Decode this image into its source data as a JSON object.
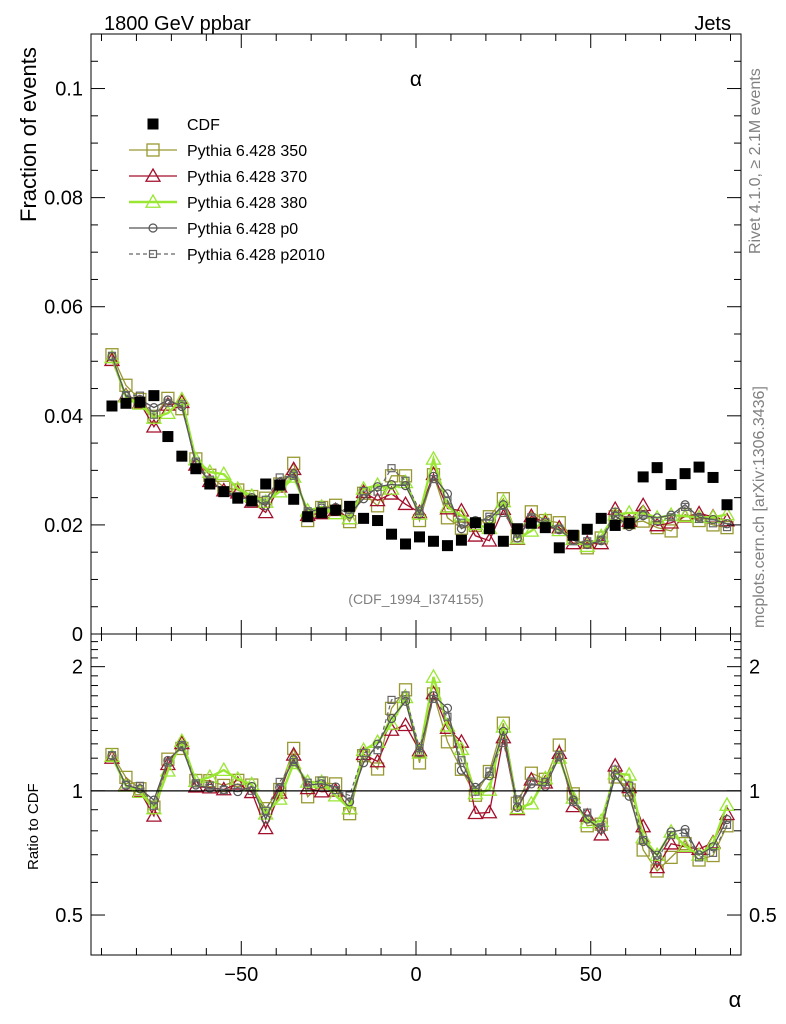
{
  "header": {
    "left_title": "1800 GeV ppbar",
    "right_title": "Jets"
  },
  "side_labels": {
    "rivet": "Rivet 4.1.0, ≥ 2.1M events",
    "mcplots": "mcplots.cern.ch [arXiv:1306.3436]"
  },
  "chart_data": [
    {
      "type": "scatter",
      "title": "α",
      "annotation": "(CDF_1994_I374155)",
      "ylabel": "Fraction of events",
      "xlabel": "α",
      "xlim": [
        -93,
        93
      ],
      "ylim": [
        0,
        0.11
      ],
      "yticks": [
        0,
        0.02,
        0.04,
        0.06,
        0.08,
        0.1
      ],
      "ytick_labels": [
        "0",
        "0.02",
        "0.04",
        "0.06",
        "0.08",
        "0.1"
      ],
      "x": [
        -87,
        -83,
        -79,
        -75,
        -71,
        -67,
        -63,
        -59,
        -55,
        -51,
        -47,
        -43,
        -39,
        -35,
        -31,
        -27,
        -23,
        -19,
        -15,
        -11,
        -7,
        -3,
        1,
        5,
        9,
        13,
        17,
        21,
        25,
        29,
        33,
        37,
        41,
        45,
        49,
        53,
        57,
        61,
        65,
        69,
        73,
        77,
        81,
        85,
        89
      ],
      "legend": [
        "CDF",
        "Pythia 6.428 350",
        "Pythia 6.428 370",
        "Pythia 6.428 380",
        "Pythia 6.428 p0",
        "Pythia 6.428 p2010"
      ],
      "series": [
        {
          "name": "CDF",
          "color": "#000000",
          "values": [
            0.0418,
            0.0423,
            0.0425,
            0.0437,
            0.0362,
            0.0326,
            0.0303,
            0.0275,
            0.0261,
            0.0249,
            0.0244,
            0.0275,
            0.0273,
            0.0247,
            0.0215,
            0.0222,
            0.0227,
            0.0234,
            0.0212,
            0.0208,
            0.0183,
            0.0165,
            0.0178,
            0.017,
            0.0162,
            0.0172,
            0.0204,
            0.0193,
            0.017,
            0.0193,
            0.0203,
            0.0195,
            0.0158,
            0.0181,
            0.0192,
            0.0212,
            0.0199,
            0.0203,
            0.0288,
            0.0305,
            0.0274,
            0.0294,
            0.0306,
            0.0287,
            0.0237
          ]
        },
        {
          "name": "Pythia 6.428 350",
          "color": "#999933",
          "values": [
            0.0512,
            0.0456,
            0.043,
            0.0399,
            0.0432,
            0.0413,
            0.0321,
            0.0291,
            0.0269,
            0.0264,
            0.0252,
            0.0249,
            0.0275,
            0.0313,
            0.0208,
            0.0232,
            0.0236,
            0.0206,
            0.0258,
            0.0235,
            0.029,
            0.029,
            0.0208,
            0.0292,
            0.0213,
            0.0194,
            0.0199,
            0.0215,
            0.0248,
            0.018,
            0.0224,
            0.0208,
            0.0204,
            0.0178,
            0.0158,
            0.0176,
            0.0215,
            0.0204,
            0.0207,
            0.0195,
            0.0189,
            0.0219,
            0.0208,
            0.02,
            0.0195
          ]
        },
        {
          "name": "Pythia 6.428 370",
          "color": "#a30f2b",
          "values": [
            0.0502,
            0.0437,
            0.0424,
            0.038,
            0.042,
            0.0425,
            0.031,
            0.028,
            0.0263,
            0.0259,
            0.0242,
            0.0223,
            0.027,
            0.0302,
            0.0218,
            0.0221,
            0.0227,
            0.0212,
            0.026,
            0.0245,
            0.0257,
            0.0238,
            0.0223,
            0.0293,
            0.023,
            0.0226,
            0.018,
            0.0171,
            0.0229,
            0.0174,
            0.0216,
            0.0204,
            0.0195,
            0.0166,
            0.0167,
            0.0166,
            0.0229,
            0.0207,
            0.0236,
            0.0199,
            0.0204,
            0.0215,
            0.0221,
            0.0215,
            0.0208
          ]
        },
        {
          "name": "Pythia 6.428 380",
          "color": "#99e633",
          "values": [
            0.0507,
            0.0435,
            0.0422,
            0.0396,
            0.0405,
            0.043,
            0.032,
            0.0297,
            0.0293,
            0.0266,
            0.0253,
            0.0242,
            0.0261,
            0.0288,
            0.0226,
            0.0233,
            0.0221,
            0.0212,
            0.0266,
            0.0273,
            0.0266,
            0.0278,
            0.022,
            0.0321,
            0.0233,
            0.0217,
            0.0201,
            0.0194,
            0.0243,
            0.0175,
            0.0189,
            0.0209,
            0.019,
            0.0174,
            0.0161,
            0.0179,
            0.0219,
            0.0222,
            0.0222,
            0.0213,
            0.0218,
            0.0216,
            0.0214,
            0.0214,
            0.0219
          ]
        },
        {
          "name": "Pythia 6.428 p0",
          "color": "#555555",
          "values": [
            0.0509,
            0.0436,
            0.043,
            0.0415,
            0.0429,
            0.0417,
            0.0313,
            0.0279,
            0.0263,
            0.0248,
            0.025,
            0.0235,
            0.0278,
            0.0294,
            0.0222,
            0.0231,
            0.0232,
            0.022,
            0.0248,
            0.027,
            0.0274,
            0.0272,
            0.022,
            0.0289,
            0.0257,
            0.0193,
            0.0208,
            0.021,
            0.0237,
            0.0176,
            0.0211,
            0.02,
            0.0191,
            0.0172,
            0.0164,
            0.0171,
            0.0217,
            0.0197,
            0.0217,
            0.0213,
            0.0218,
            0.0237,
            0.0214,
            0.021,
            0.0202
          ]
        },
        {
          "name": "Pythia 6.428 p2010",
          "color": "#666666",
          "values": [
            0.051,
            0.0438,
            0.0437,
            0.0402,
            0.0424,
            0.0421,
            0.0316,
            0.0283,
            0.0262,
            0.0253,
            0.0244,
            0.0246,
            0.0287,
            0.029,
            0.0225,
            0.0235,
            0.0228,
            0.0228,
            0.0262,
            0.0261,
            0.0304,
            0.0281,
            0.0226,
            0.0284,
            0.0245,
            0.0204,
            0.0203,
            0.0215,
            0.0222,
            0.0184,
            0.0214,
            0.0205,
            0.0193,
            0.017,
            0.017,
            0.0173,
            0.0224,
            0.0209,
            0.0219,
            0.0207,
            0.0214,
            0.0233,
            0.0211,
            0.0203,
            0.0196
          ]
        }
      ]
    },
    {
      "type": "line",
      "ylabel": "Ratio to CDF",
      "xlabel": "α",
      "xlim": [
        -93,
        93
      ],
      "ylim": [
        0.4,
        2.4
      ],
      "yscale": "log",
      "yticks": [
        0.5,
        1,
        2
      ],
      "ytick_labels": [
        "0.5",
        "1",
        "2"
      ],
      "xticks": [
        -50,
        0,
        50
      ],
      "xtick_labels": [
        "−50",
        "0",
        "50"
      ],
      "reference_line": 1
    }
  ]
}
